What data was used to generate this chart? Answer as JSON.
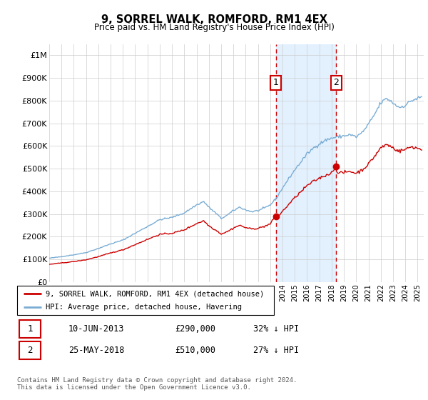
{
  "title": "9, SORREL WALK, ROMFORD, RM1 4EX",
  "subtitle": "Price paid vs. HM Land Registry's House Price Index (HPI)",
  "legend_line1": "9, SORREL WALK, ROMFORD, RM1 4EX (detached house)",
  "legend_line2": "HPI: Average price, detached house, Havering",
  "footnote": "Contains HM Land Registry data © Crown copyright and database right 2024.\nThis data is licensed under the Open Government Licence v3.0.",
  "annotation1_date": "10-JUN-2013",
  "annotation1_price": "£290,000",
  "annotation1_hpi": "32% ↓ HPI",
  "annotation2_date": "25-MAY-2018",
  "annotation2_price": "£510,000",
  "annotation2_hpi": "27% ↓ HPI",
  "hpi_color": "#7aadd4",
  "sold_color": "#cc0000",
  "annotation_color": "#cc0000",
  "shaded_color": "#ddeeff",
  "ylim": [
    0,
    1050000
  ],
  "yticks": [
    0,
    100000,
    200000,
    300000,
    400000,
    500000,
    600000,
    700000,
    800000,
    900000,
    1000000
  ],
  "ytick_labels": [
    "£0",
    "£100K",
    "£200K",
    "£300K",
    "£400K",
    "£500K",
    "£600K",
    "£700K",
    "£800K",
    "£900K",
    "£1M"
  ],
  "sale1_x": 2013.45,
  "sale1_y": 290000,
  "sale2_x": 2018.38,
  "sale2_y": 510000,
  "xmin": 1995,
  "xmax": 2025.5
}
